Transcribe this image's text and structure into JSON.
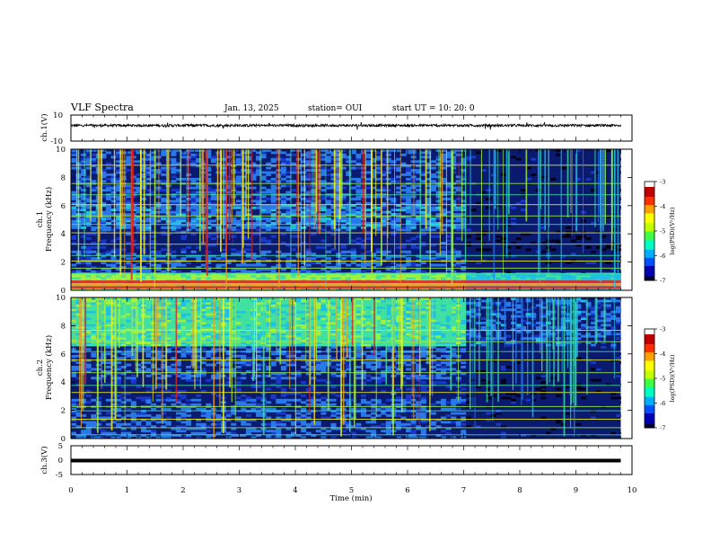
{
  "header": {
    "title": "VLF Spectra",
    "date": "Jan. 13, 2025",
    "station": "station= OUI",
    "start": "start  UT =   10: 20: 0"
  },
  "chart_data": [
    {
      "type": "line",
      "panel": "ch1-waveform",
      "ylabel": "ch.1(V)",
      "ylim": [
        -10,
        10
      ],
      "yticks": [
        "10",
        "-10"
      ],
      "xlim": [
        0,
        10
      ],
      "baseline_value": 2,
      "noise_amplitude": 1
    },
    {
      "type": "heatmap",
      "panel": "ch1-spectrogram",
      "ylabel_line1": "ch.1",
      "ylabel_line2": "Frequency (kHz)",
      "ylim": [
        0,
        10
      ],
      "yticks": [
        "0",
        "2",
        "4",
        "6",
        "8",
        "10"
      ],
      "xlim": [
        0,
        10
      ],
      "data_end_min": 9.8,
      "colorbar": {
        "label": "log(PSD)(V²/Hz)",
        "range": [
          -7,
          -3
        ],
        "ticks": [
          "-3",
          "-4",
          "-5",
          "-6",
          "-7"
        ]
      }
    },
    {
      "type": "heatmap",
      "panel": "ch2-spectrogram",
      "ylabel_line1": "ch.2",
      "ylabel_line2": "Frequency (kHz)",
      "ylim": [
        0,
        10
      ],
      "yticks": [
        "0",
        "2",
        "4",
        "6",
        "8",
        "10"
      ],
      "xlim": [
        0,
        10
      ],
      "data_end_min": 9.8,
      "colorbar": {
        "label": "log(PSD)(V²/Hz)",
        "range": [
          -7,
          -3
        ],
        "ticks": [
          "-3",
          "-4",
          "-5",
          "-6",
          "-7"
        ]
      }
    },
    {
      "type": "line",
      "panel": "ch3-waveform",
      "ylabel": "ch.3(V)",
      "ylim": [
        -5,
        5
      ],
      "yticks": [
        "5",
        "0",
        "-5"
      ],
      "xlim": [
        0,
        10
      ],
      "baseline_value": 0
    }
  ],
  "xaxis": {
    "label": "Time (min)",
    "ticks": [
      "0",
      "1",
      "2",
      "3",
      "4",
      "5",
      "6",
      "7",
      "8",
      "9",
      "10"
    ]
  },
  "colors": {
    "trace": "#000000",
    "background": "#ffffff",
    "colormap": [
      "#000018",
      "#0a1a6e",
      "#1a38c8",
      "#2878e8",
      "#20c0e0",
      "#40e0a0",
      "#a0f040",
      "#f0f020",
      "#f0a020",
      "#e02020"
    ]
  }
}
